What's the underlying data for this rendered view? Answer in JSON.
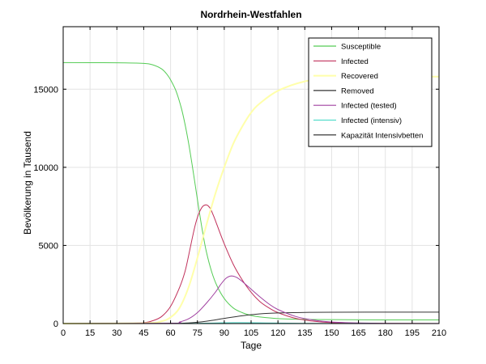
{
  "chart_data": {
    "type": "line",
    "title": "Nordrhein-Westfahlen",
    "xlabel": "Tage",
    "ylabel": "Bevölkerung in Tausend",
    "xlim": [
      0,
      210
    ],
    "ylim": [
      0,
      19000
    ],
    "xticks": [
      0,
      15,
      30,
      45,
      60,
      75,
      90,
      105,
      120,
      135,
      150,
      165,
      180,
      195,
      210
    ],
    "yticks": [
      0,
      5000,
      10000,
      15000
    ],
    "grid": true,
    "legend_position": "top-right",
    "series": [
      {
        "name": "Susceptible",
        "color": "#55cc55",
        "x": [
          0,
          30,
          45,
          50,
          55,
          58,
          60,
          63,
          66,
          68,
          70,
          72,
          74,
          76,
          78,
          80,
          83,
          86,
          90,
          95,
          100,
          105,
          110,
          120,
          135,
          150,
          180,
          210
        ],
        "y": [
          16700,
          16690,
          16650,
          16560,
          16300,
          15950,
          15600,
          14900,
          13800,
          12800,
          11600,
          10200,
          8700,
          7200,
          5800,
          4600,
          3300,
          2400,
          1600,
          1000,
          700,
          520,
          420,
          320,
          270,
          250,
          235,
          230
        ]
      },
      {
        "name": "Infected",
        "color": "#c0305a",
        "x": [
          0,
          30,
          45,
          50,
          55,
          60,
          65,
          68,
          70,
          72,
          74,
          76,
          78,
          80,
          82,
          84,
          86,
          90,
          95,
          100,
          105,
          110,
          115,
          120,
          130,
          140,
          150,
          165,
          180,
          210
        ],
        "y": [
          0,
          5,
          60,
          180,
          450,
          1100,
          2300,
          3300,
          4300,
          5400,
          6400,
          7100,
          7500,
          7600,
          7400,
          6900,
          6300,
          5100,
          3800,
          2800,
          2000,
          1400,
          1000,
          700,
          330,
          150,
          60,
          20,
          8,
          2
        ]
      },
      {
        "name": "Recovered",
        "color": "#ffffaa",
        "x": [
          0,
          45,
          55,
          60,
          65,
          70,
          75,
          80,
          85,
          90,
          95,
          100,
          105,
          110,
          120,
          135,
          150,
          165,
          180,
          210
        ],
        "y": [
          0,
          20,
          150,
          400,
          1000,
          2300,
          4200,
          6300,
          8300,
          10000,
          11500,
          12600,
          13500,
          14100,
          14900,
          15500,
          15700,
          15780,
          15800,
          15800
        ]
      },
      {
        "name": "Removed",
        "color": "#333333",
        "x": [
          0,
          45,
          60,
          70,
          80,
          90,
          100,
          110,
          120,
          135,
          150,
          180,
          210
        ],
        "y": [
          0,
          0,
          10,
          40,
          150,
          330,
          500,
          620,
          680,
          715,
          725,
          730,
          730
        ]
      },
      {
        "name": "Infected (tested)",
        "color": "#a040a0",
        "x": [
          0,
          60,
          65,
          70,
          75,
          80,
          85,
          88,
          91,
          94,
          97,
          100,
          105,
          110,
          115,
          120,
          130,
          140,
          150,
          165,
          180,
          210
        ],
        "y": [
          0,
          20,
          100,
          300,
          700,
          1300,
          2000,
          2500,
          2900,
          3050,
          2950,
          2700,
          2200,
          1700,
          1250,
          900,
          450,
          220,
          100,
          40,
          15,
          5
        ]
      },
      {
        "name": "Infected (intensiv)",
        "color": "#55ddcc",
        "x": [
          0,
          60,
          70,
          80,
          90,
          95,
          100,
          110,
          120,
          135,
          150,
          180,
          210
        ],
        "y": [
          0,
          2,
          8,
          25,
          50,
          60,
          58,
          45,
          30,
          15,
          7,
          2,
          0
        ]
      },
      {
        "name": "Kapazität Intensivbetten",
        "color": "#222222",
        "x": [
          0,
          210
        ],
        "y": [
          0,
          0
        ]
      }
    ]
  }
}
